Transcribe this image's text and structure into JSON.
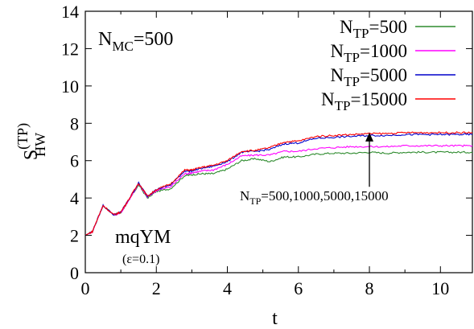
{
  "chart_data": {
    "type": "line",
    "xlabel": "t",
    "ylabel": {
      "base": "S",
      "sup": "(TP)",
      "sub": "HW"
    },
    "xlim": [
      0,
      10.9
    ],
    "ylim": [
      0,
      14
    ],
    "x_ticks": [
      0,
      2,
      4,
      6,
      8,
      10
    ],
    "y_ticks": [
      0,
      2,
      4,
      6,
      8,
      10,
      12,
      14
    ],
    "grid": false,
    "legend_position": "top-right",
    "annotations": {
      "nmc": {
        "base": "N",
        "sub": "MC",
        "rest": "=500"
      },
      "model": "mqYM",
      "epsilon": "(ε=0.1)",
      "arrow_label": {
        "base": "N",
        "sub": "TP",
        "rest": "=500,1000,5000,15000"
      },
      "arrow_from": [
        8.0,
        4.6
      ],
      "arrow_to": [
        8.0,
        7.5
      ]
    },
    "series": [
      {
        "name": {
          "base": "N",
          "sub": "TP",
          "rest": "=500"
        },
        "color": "#2e8b2e",
        "points": [
          [
            0,
            2.0
          ],
          [
            0.2,
            2.2
          ],
          [
            0.5,
            3.6
          ],
          [
            0.8,
            3.1
          ],
          [
            1.0,
            3.2
          ],
          [
            1.2,
            3.8
          ],
          [
            1.5,
            4.7
          ],
          [
            1.75,
            4.0
          ],
          [
            2.0,
            4.35
          ],
          [
            2.4,
            4.5
          ],
          [
            2.8,
            5.2
          ],
          [
            3.0,
            5.25
          ],
          [
            3.3,
            5.3
          ],
          [
            3.6,
            5.3
          ],
          [
            4.0,
            5.55
          ],
          [
            4.4,
            6.0
          ],
          [
            4.8,
            6.1
          ],
          [
            5.2,
            5.95
          ],
          [
            5.6,
            6.2
          ],
          [
            6.0,
            6.2
          ],
          [
            6.5,
            6.35
          ],
          [
            7.0,
            6.4
          ],
          [
            7.5,
            6.4
          ],
          [
            8.0,
            6.45
          ],
          [
            8.5,
            6.4
          ],
          [
            9.0,
            6.45
          ],
          [
            9.5,
            6.45
          ],
          [
            10.0,
            6.45
          ],
          [
            10.5,
            6.45
          ],
          [
            10.9,
            6.45
          ]
        ]
      },
      {
        "name": {
          "base": "N",
          "sub": "TP",
          "rest": "=1000"
        },
        "color": "#ff00ff",
        "points": [
          [
            0,
            2.0
          ],
          [
            0.2,
            2.2
          ],
          [
            0.5,
            3.6
          ],
          [
            0.8,
            3.1
          ],
          [
            1.0,
            3.2
          ],
          [
            1.2,
            3.8
          ],
          [
            1.5,
            4.75
          ],
          [
            1.75,
            4.05
          ],
          [
            2.0,
            4.4
          ],
          [
            2.4,
            4.6
          ],
          [
            2.8,
            5.3
          ],
          [
            3.0,
            5.35
          ],
          [
            3.3,
            5.45
          ],
          [
            3.6,
            5.5
          ],
          [
            4.0,
            5.8
          ],
          [
            4.4,
            6.25
          ],
          [
            4.8,
            6.3
          ],
          [
            5.2,
            6.3
          ],
          [
            5.6,
            6.5
          ],
          [
            6.0,
            6.5
          ],
          [
            6.5,
            6.65
          ],
          [
            7.0,
            6.7
          ],
          [
            7.5,
            6.75
          ],
          [
            8.0,
            6.75
          ],
          [
            8.5,
            6.75
          ],
          [
            9.0,
            6.8
          ],
          [
            9.5,
            6.8
          ],
          [
            10.0,
            6.8
          ],
          [
            10.5,
            6.8
          ],
          [
            10.9,
            6.8
          ]
        ]
      },
      {
        "name": {
          "base": "N",
          "sub": "TP",
          "rest": "=5000"
        },
        "color": "#0000cc",
        "points": [
          [
            0,
            2.0
          ],
          [
            0.2,
            2.2
          ],
          [
            0.5,
            3.6
          ],
          [
            0.8,
            3.1
          ],
          [
            1.0,
            3.25
          ],
          [
            1.2,
            3.85
          ],
          [
            1.5,
            4.8
          ],
          [
            1.75,
            4.1
          ],
          [
            2.0,
            4.45
          ],
          [
            2.4,
            4.7
          ],
          [
            2.8,
            5.45
          ],
          [
            3.0,
            5.45
          ],
          [
            3.3,
            5.6
          ],
          [
            3.6,
            5.7
          ],
          [
            4.0,
            5.95
          ],
          [
            4.4,
            6.45
          ],
          [
            4.8,
            6.5
          ],
          [
            5.2,
            6.6
          ],
          [
            5.6,
            6.9
          ],
          [
            6.0,
            6.95
          ],
          [
            6.5,
            7.2
          ],
          [
            7.0,
            7.25
          ],
          [
            7.5,
            7.3
          ],
          [
            8.0,
            7.35
          ],
          [
            8.5,
            7.35
          ],
          [
            9.0,
            7.4
          ],
          [
            9.5,
            7.4
          ],
          [
            10.0,
            7.4
          ],
          [
            10.5,
            7.4
          ],
          [
            10.9,
            7.4
          ]
        ]
      },
      {
        "name": {
          "base": "N",
          "sub": "TP",
          "rest": "=15000"
        },
        "color": "#ff0000",
        "points": [
          [
            0,
            2.0
          ],
          [
            0.2,
            2.2
          ],
          [
            0.5,
            3.6
          ],
          [
            0.8,
            3.1
          ],
          [
            1.0,
            3.25
          ],
          [
            1.2,
            3.85
          ],
          [
            1.5,
            4.8
          ],
          [
            1.75,
            4.1
          ],
          [
            2.0,
            4.45
          ],
          [
            2.4,
            4.75
          ],
          [
            2.8,
            5.5
          ],
          [
            3.0,
            5.5
          ],
          [
            3.3,
            5.65
          ],
          [
            3.6,
            5.75
          ],
          [
            4.0,
            6.0
          ],
          [
            4.4,
            6.5
          ],
          [
            4.8,
            6.55
          ],
          [
            5.2,
            6.7
          ],
          [
            5.6,
            7.0
          ],
          [
            6.0,
            7.05
          ],
          [
            6.5,
            7.3
          ],
          [
            7.0,
            7.35
          ],
          [
            7.5,
            7.4
          ],
          [
            8.0,
            7.45
          ],
          [
            8.5,
            7.45
          ],
          [
            9.0,
            7.5
          ],
          [
            9.5,
            7.5
          ],
          [
            10.0,
            7.5
          ],
          [
            10.5,
            7.5
          ],
          [
            10.9,
            7.5
          ]
        ]
      }
    ]
  }
}
